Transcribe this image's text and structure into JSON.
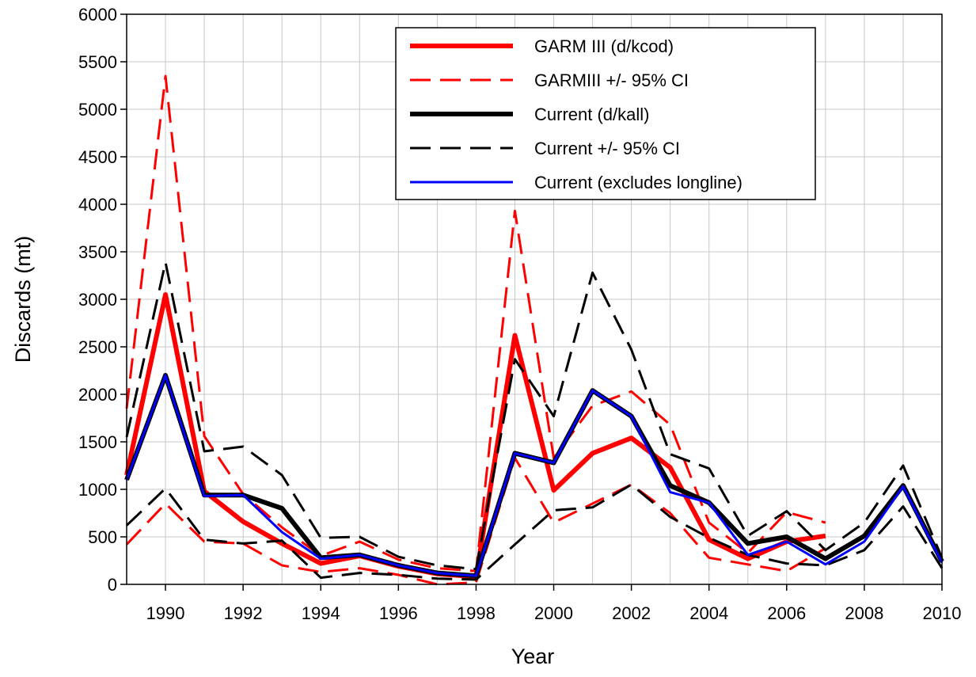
{
  "chart_data": {
    "type": "line",
    "xlabel": "Year",
    "ylabel": "Discards (mt)",
    "x": [
      1989,
      1990,
      1991,
      1992,
      1993,
      1994,
      1995,
      1996,
      1997,
      1998,
      1999,
      2000,
      2001,
      2002,
      2003,
      2004,
      2005,
      2006,
      2007,
      2008,
      2009,
      2010
    ],
    "xlim": [
      1989,
      2010
    ],
    "xticks": [
      1990,
      1992,
      1994,
      1996,
      1998,
      2000,
      2002,
      2004,
      2006,
      2008,
      2010
    ],
    "ylim": [
      0,
      6000
    ],
    "yticks": [
      0,
      500,
      1000,
      1500,
      2000,
      2500,
      3000,
      3500,
      4000,
      4500,
      5000,
      5500,
      6000
    ],
    "grid": true,
    "legend": "upper center",
    "series": [
      {
        "name": "GARM III (d/kcod)",
        "color": "#ff0000",
        "dash": "solid",
        "width": 6,
        "values": [
          1150,
          3050,
          980,
          660,
          430,
          220,
          300,
          190,
          110,
          80,
          2620,
          990,
          1380,
          1540,
          1230,
          470,
          270,
          450,
          510,
          null,
          null,
          null
        ]
      },
      {
        "name": "GARMIII +/- 95% CI",
        "color": "#ff0000",
        "dash": "dashed",
        "width": 3,
        "values": [
          1850,
          5350,
          1560,
          950,
          600,
          300,
          450,
          260,
          170,
          140,
          3930,
          1330,
          1880,
          2030,
          1680,
          650,
          330,
          760,
          650,
          null,
          null,
          null
        ],
        "lower_values": [
          420,
          850,
          450,
          430,
          200,
          130,
          170,
          100,
          0,
          20,
          1330,
          650,
          850,
          1050,
          750,
          280,
          210,
          140,
          380,
          null,
          null,
          null
        ]
      },
      {
        "name": "Current (d/kall)",
        "color": "#000000",
        "dash": "solid",
        "width": 6,
        "values": [
          1100,
          2200,
          940,
          940,
          800,
          280,
          310,
          200,
          120,
          90,
          1380,
          1280,
          2040,
          1770,
          1040,
          860,
          430,
          500,
          270,
          510,
          1040,
          240
        ]
      },
      {
        "name": "Current +/- 95% CI",
        "color": "#000000",
        "dash": "dashed",
        "width": 3,
        "values": [
          1550,
          3390,
          1400,
          1450,
          1150,
          490,
          500,
          290,
          200,
          160,
          2370,
          1770,
          3280,
          2470,
          1370,
          1220,
          510,
          770,
          360,
          650,
          1250,
          280
        ],
        "lower_values": [
          620,
          1010,
          470,
          430,
          460,
          70,
          120,
          100,
          60,
          50,
          420,
          780,
          810,
          1050,
          710,
          490,
          310,
          220,
          200,
          360,
          820,
          170
        ]
      },
      {
        "name": "Current (excludes longline)",
        "color": "#0000ff",
        "dash": "solid",
        "width": 3,
        "values": [
          1100,
          2200,
          930,
          940,
          550,
          270,
          310,
          200,
          120,
          90,
          1380,
          1280,
          2040,
          1770,
          970,
          860,
          310,
          450,
          210,
          450,
          1030,
          230
        ]
      }
    ]
  }
}
